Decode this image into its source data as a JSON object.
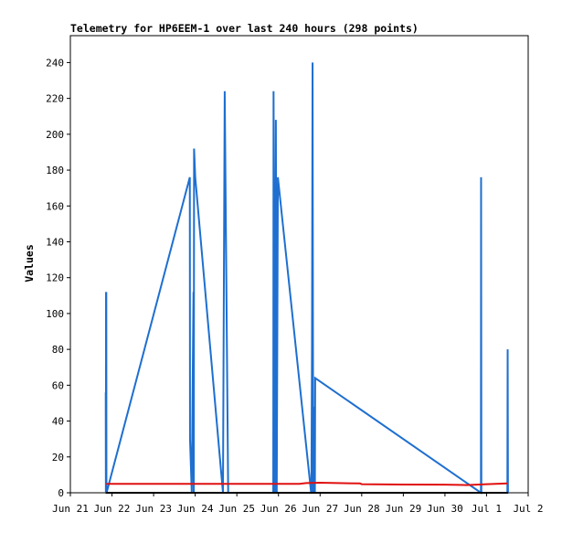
{
  "chart_data": {
    "type": "line",
    "title": "Telemetry for HP6EEM-1 over last 240 hours (298 points)",
    "xlabel": "",
    "ylabel": "Values",
    "x_tick_labels": [
      "Jun 21",
      "Jun 22",
      "Jun 23",
      "Jun 24",
      "Jun 25",
      "Jun 26",
      "Jun 27",
      "Jun 28",
      "Jun 29",
      "Jun 30",
      "Jul 1",
      "Jul 2"
    ],
    "xlim": [
      "2024-06-21T00:00",
      "2024-07-02T00:00"
    ],
    "ylim": [
      0,
      255
    ],
    "y_ticks": [
      0,
      20,
      40,
      60,
      80,
      100,
      120,
      140,
      160,
      180,
      200,
      220,
      240
    ],
    "grid": false,
    "legend": "none",
    "colors": {
      "blue": "#1e6fd0",
      "red": "#e01010",
      "black": "#000000"
    },
    "series": [
      {
        "color": "#1e6fd0",
        "x": [
          "2024-06-21T20:24",
          "2024-06-21T20:29",
          "2024-06-21T20:34",
          "2024-06-21T20:38",
          "2024-06-21T20:43",
          "2024-06-21T20:48",
          "2024-06-21T20:53",
          "2024-06-23T20:53",
          "2024-06-23T21:00",
          "2024-06-23T22:00",
          "2024-06-23T23:00",
          "2024-06-23T23:10",
          "2024-06-23T23:20",
          "2024-06-24T00:00",
          "2024-06-24T16:00",
          "2024-06-24T17:00",
          "2024-06-24T19:00",
          "2024-06-24T20:00",
          "2024-06-25T21:00",
          "2024-06-25T21:10",
          "2024-06-25T22:00",
          "2024-06-25T22:30",
          "2024-06-25T23:00",
          "2024-06-25T23:40",
          "2024-06-26T18:50",
          "2024-06-26T19:00",
          "2024-06-26T19:20",
          "2024-06-26T19:40",
          "2024-06-26T20:00",
          "2024-06-26T20:30",
          "2024-06-26T21:00",
          "2024-06-26T21:10",
          "2024-06-30T20:45",
          "2024-06-30T20:50",
          "2024-06-30T21:00",
          "2024-07-01T12:00",
          "2024-07-01T12:10",
          "2024-07-01T12:20"
        ],
        "y": [
          56,
          0,
          112,
          0,
          112,
          0,
          0,
          176,
          30,
          0,
          112,
          0,
          192,
          176,
          0,
          224,
          0,
          0,
          0,
          224,
          0,
          208,
          0,
          176,
          0,
          0,
          80,
          240,
          0,
          48,
          0,
          64,
          0,
          176,
          0,
          0,
          80,
          0
        ]
      },
      {
        "color": "#e01010",
        "x": [
          "2024-06-21T20:40",
          "2024-06-24T00:00",
          "2024-06-25T00:00",
          "2024-06-26T12:00",
          "2024-06-26T16:00",
          "2024-06-27T00:00",
          "2024-06-27T23:00",
          "2024-06-28T00:00",
          "2024-06-29T00:00",
          "2024-06-30T00:00",
          "2024-06-30T12:00",
          "2024-07-01T00:00",
          "2024-07-01T12:00"
        ],
        "y": [
          5,
          5,
          5,
          5,
          5.4,
          5.6,
          5.2,
          4.8,
          4.6,
          4.5,
          4.3,
          4.8,
          5.2
        ]
      },
      {
        "color": "#000000",
        "x": [
          "2024-06-21T20:24",
          "2024-07-01T12:30"
        ],
        "y": [
          0,
          0
        ]
      }
    ]
  }
}
